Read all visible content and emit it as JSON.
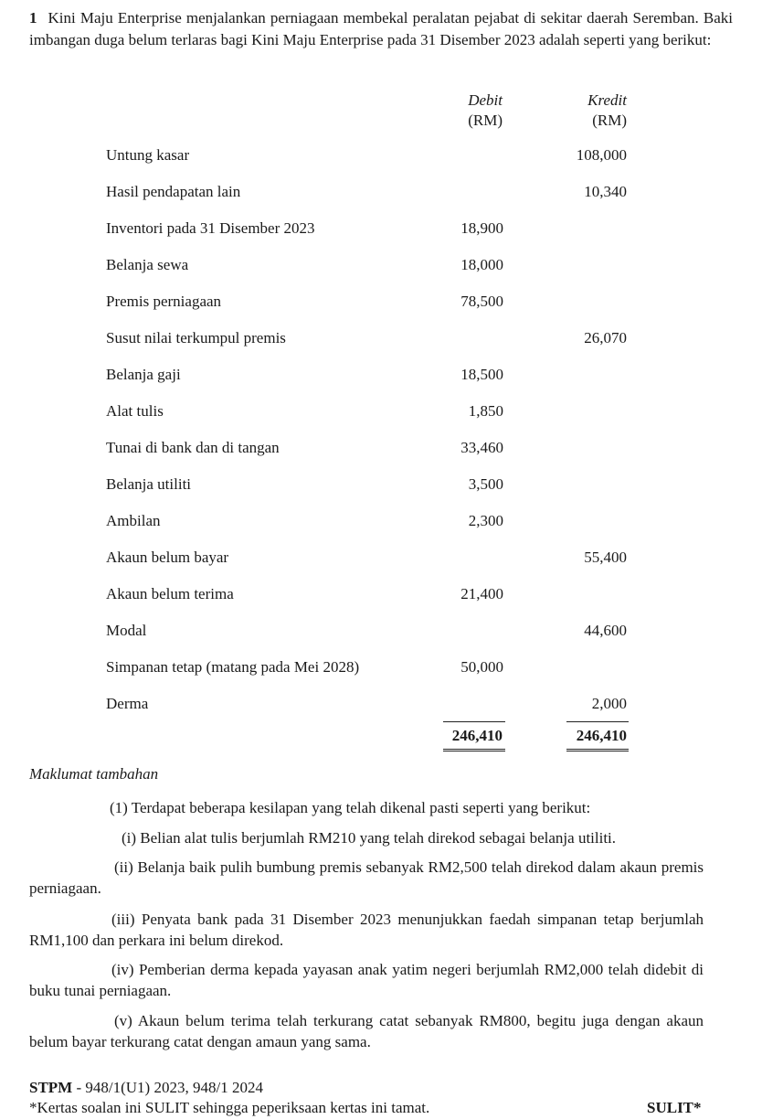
{
  "question": {
    "number": "1",
    "intro": "Kini Maju Enterprise menjalankan perniagaan membekal peralatan pejabat di sekitar daerah Seremban. Baki imbangan duga belum terlaras bagi Kini Maju Enterprise pada 31 Disember 2023 adalah seperti yang berikut:"
  },
  "trial_balance": {
    "headers": {
      "debit": "Debit",
      "credit": "Kredit",
      "debit_unit": "(RM)",
      "credit_unit": "(RM)"
    },
    "rows": [
      {
        "item": "Untung kasar",
        "debit": "",
        "credit": "108,000"
      },
      {
        "item": "Hasil pendapatan lain",
        "debit": "",
        "credit": "10,340"
      },
      {
        "item": "Inventori pada 31 Disember 2023",
        "debit": "18,900",
        "credit": ""
      },
      {
        "item": "Belanja sewa",
        "debit": "18,000",
        "credit": ""
      },
      {
        "item": "Premis perniagaan",
        "debit": "78,500",
        "credit": ""
      },
      {
        "item": "Susut nilai terkumpul premis",
        "debit": "",
        "credit": "26,070"
      },
      {
        "item": "Belanja gaji",
        "debit": "18,500",
        "credit": ""
      },
      {
        "item": "Alat tulis",
        "debit": "1,850",
        "credit": ""
      },
      {
        "item": "Tunai di bank dan di tangan",
        "debit": "33,460",
        "credit": ""
      },
      {
        "item": "Belanja utiliti",
        "debit": "3,500",
        "credit": ""
      },
      {
        "item": "Ambilan",
        "debit": "2,300",
        "credit": ""
      },
      {
        "item": "Akaun belum bayar",
        "debit": "",
        "credit": "55,400"
      },
      {
        "item": "Akaun belum terima",
        "debit": "21,400",
        "credit": ""
      },
      {
        "item": "Modal",
        "debit": "",
        "credit": "44,600"
      },
      {
        "item": "Simpanan tetap (matang pada Mei 2028)",
        "debit": "50,000",
        "credit": ""
      },
      {
        "item": "Derma",
        "debit": "",
        "credit": "2,000"
      }
    ],
    "total_debit": "246,410",
    "total_credit": "246,410"
  },
  "additional_info": {
    "heading": "Maklumat tambahan",
    "intro_label": "(1)",
    "intro": "Terdapat beberapa kesilapan yang telah dikenal pasti seperti yang berikut:",
    "items": [
      {
        "label": "(i)",
        "text": "Belian alat tulis berjumlah RM210 yang telah direkod sebagai belanja utiliti."
      },
      {
        "label": "(ii)",
        "text": "Belanja baik pulih bumbung premis sebanyak RM2,500 telah direkod dalam akaun premis perniagaan."
      },
      {
        "label": "(iii)",
        "text": "Penyata bank pada 31 Disember 2023 menunjukkan faedah simpanan tetap berjumlah RM1,100 dan perkara ini belum direkod."
      },
      {
        "label": "(iv)",
        "text": "Pemberian derma kepada yayasan anak yatim negeri berjumlah RM2,000 telah didebit di buku tunai perniagaan."
      },
      {
        "label": "(v)",
        "text": "Akaun belum terima telah terkurang catat sebanyak RM800, begitu juga dengan akaun belum bayar terkurang catat dengan amaun yang sama."
      }
    ]
  },
  "footer": {
    "code_bold": "STPM",
    "code_rest": " - 948/1(U1) 2023, 948/1 2024",
    "notice": "*Kertas soalan ini SULIT sehingga peperiksaan kertas ini tamat.",
    "classification": "SULIT*"
  }
}
